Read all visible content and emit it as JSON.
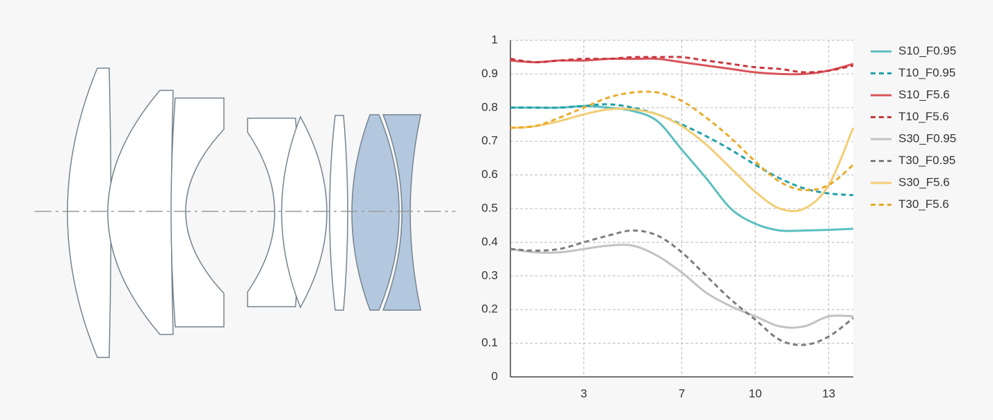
{
  "chart_data": {
    "type": "line",
    "x": [
      0,
      1,
      2,
      3,
      4,
      5,
      6,
      7,
      8,
      9,
      10,
      11,
      12,
      13,
      14
    ],
    "xlim": [
      0,
      14
    ],
    "ylim": [
      0,
      1
    ],
    "xticks": [
      3,
      7,
      10,
      13
    ],
    "yticks": [
      0,
      0.1,
      0.2,
      0.3,
      0.4,
      0.5,
      0.6,
      0.7,
      0.8,
      0.9,
      1
    ],
    "grid": true,
    "series": [
      {
        "name": "S10_F0.95",
        "color": "#5bbfbf",
        "dashed": false,
        "values": [
          0.8,
          0.8,
          0.8,
          0.805,
          0.8,
          0.79,
          0.76,
          0.675,
          0.59,
          0.5,
          0.455,
          0.435,
          0.435,
          0.437,
          0.44
        ]
      },
      {
        "name": "T10_F0.95",
        "color": "#1fa0a8",
        "dashed": true,
        "values": [
          0.8,
          0.8,
          0.8,
          0.805,
          0.81,
          0.8,
          0.78,
          0.75,
          0.715,
          0.675,
          0.63,
          0.59,
          0.56,
          0.545,
          0.54
        ]
      },
      {
        "name": "S10_F5.6",
        "color": "#d9545a",
        "dashed": false,
        "values": [
          0.94,
          0.935,
          0.94,
          0.94,
          0.945,
          0.945,
          0.945,
          0.935,
          0.925,
          0.915,
          0.905,
          0.9,
          0.9,
          0.91,
          0.93
        ]
      },
      {
        "name": "T10_F5.6",
        "color": "#c8363e",
        "dashed": true,
        "values": [
          0.945,
          0.935,
          0.94,
          0.945,
          0.945,
          0.95,
          0.95,
          0.95,
          0.94,
          0.93,
          0.92,
          0.915,
          0.905,
          0.91,
          0.925
        ]
      },
      {
        "name": "S30_F0.95",
        "color": "#c2c2c2",
        "dashed": false,
        "values": [
          0.38,
          0.37,
          0.37,
          0.38,
          0.39,
          0.39,
          0.36,
          0.31,
          0.25,
          0.21,
          0.18,
          0.15,
          0.15,
          0.18,
          0.18
        ]
      },
      {
        "name": "T30_F0.95",
        "color": "#7d7d7d",
        "dashed": true,
        "values": [
          0.38,
          0.375,
          0.38,
          0.4,
          0.42,
          0.435,
          0.42,
          0.37,
          0.3,
          0.23,
          0.17,
          0.11,
          0.095,
          0.12,
          0.175
        ]
      },
      {
        "name": "S30_F5.6",
        "color": "#f2cd74",
        "dashed": false,
        "values": [
          0.74,
          0.745,
          0.76,
          0.78,
          0.795,
          0.795,
          0.78,
          0.745,
          0.69,
          0.62,
          0.55,
          0.5,
          0.5,
          0.57,
          0.74
        ]
      },
      {
        "name": "T30_F5.6",
        "color": "#e8aa2a",
        "dashed": true,
        "values": [
          0.74,
          0.745,
          0.77,
          0.8,
          0.83,
          0.845,
          0.845,
          0.82,
          0.77,
          0.71,
          0.64,
          0.58,
          0.555,
          0.57,
          0.63
        ]
      }
    ]
  }
}
